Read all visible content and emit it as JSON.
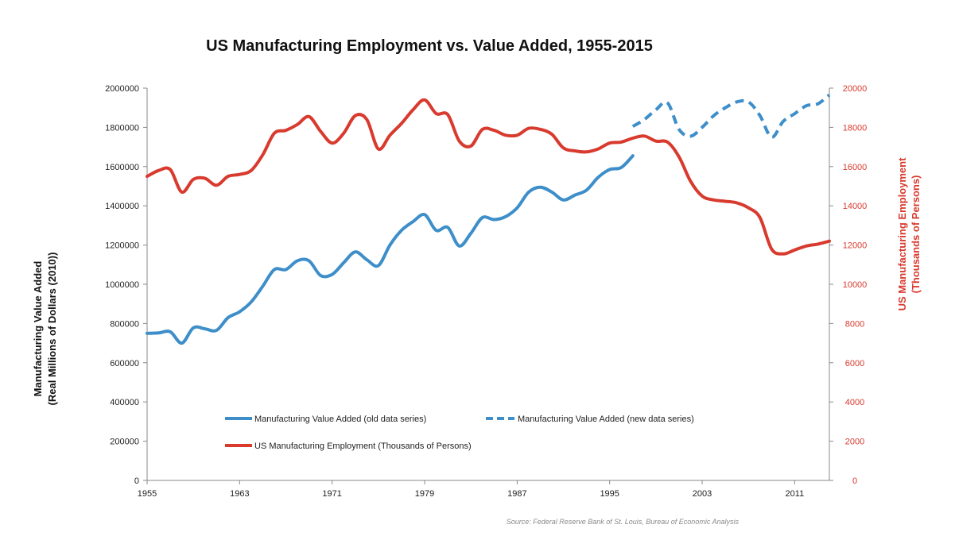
{
  "chart_data": {
    "type": "line",
    "title": "US Manufacturing Employment vs. Value Added, 1955-2015",
    "ylabel_left": [
      "Manufacturing Value Added",
      "(Real Millions of Dollars (2010))"
    ],
    "ylabel_right": [
      "US Manufacturing Employment",
      "(Thousands of Persons)"
    ],
    "source": "Source: Federal Reserve Bank of St. Louis, Bureau of Economic Analysis",
    "xlim": [
      1955,
      2014
    ],
    "ylim_left": [
      0,
      2000000
    ],
    "ylim_right": [
      0,
      20000
    ],
    "x_ticks": [
      "1955",
      "1963",
      "1971",
      "1979",
      "1987",
      "1995",
      "2003",
      "2011"
    ],
    "y_ticks_left": [
      "0",
      "200000",
      "400000",
      "600000",
      "800000",
      "1000000",
      "1200000",
      "1400000",
      "1600000",
      "1800000",
      "2000000"
    ],
    "y_ticks_right": [
      "0",
      "2000",
      "4000",
      "6000",
      "8000",
      "10000",
      "12000",
      "14000",
      "16000",
      "18000",
      "20000"
    ],
    "grid": false,
    "legend_position": "bottom-center",
    "colors": {
      "value_added": "#3d8ec9",
      "employment": "#d83a2e"
    },
    "series": [
      {
        "name": "Manufacturing Value Added (old data series)",
        "axis": "left",
        "style": "solid",
        "color": "#3d8ec9",
        "x": [
          1955,
          1956,
          1957,
          1958,
          1959,
          1960,
          1961,
          1962,
          1963,
          1964,
          1965,
          1966,
          1967,
          1968,
          1969,
          1970,
          1971,
          1972,
          1973,
          1974,
          1975,
          1976,
          1977,
          1978,
          1979,
          1980,
          1981,
          1982,
          1983,
          1984,
          1985,
          1986,
          1987,
          1988,
          1989,
          1990,
          1991,
          1992,
          1993,
          1994,
          1995,
          1996,
          1997
        ],
        "y": [
          750000,
          752000,
          758000,
          700000,
          778000,
          773000,
          765000,
          830000,
          860000,
          910000,
          990000,
          1075000,
          1075000,
          1120000,
          1120000,
          1045000,
          1050000,
          1110000,
          1165000,
          1125000,
          1095000,
          1200000,
          1275000,
          1320000,
          1355000,
          1275000,
          1290000,
          1195000,
          1260000,
          1340000,
          1330000,
          1345000,
          1390000,
          1470000,
          1495000,
          1470000,
          1430000,
          1455000,
          1480000,
          1545000,
          1585000,
          1595000,
          1655000
        ]
      },
      {
        "name": "Manufacturing Value Added (new data series)",
        "axis": "left",
        "style": "dashed",
        "color": "#3d8ec9",
        "x": [
          1997,
          1998,
          1999,
          2000,
          2001,
          2002,
          2003,
          2004,
          2005,
          2006,
          2007,
          2008,
          2009,
          2010,
          2011,
          2012,
          2013,
          2014
        ],
        "y": [
          1805000,
          1840000,
          1890000,
          1925000,
          1790000,
          1755000,
          1800000,
          1860000,
          1900000,
          1930000,
          1930000,
          1860000,
          1750000,
          1830000,
          1870000,
          1910000,
          1920000,
          1965000
        ]
      },
      {
        "name": "US Manufacturing Employment (Thousands of Persons)",
        "axis": "right",
        "style": "solid",
        "color": "#d83a2e",
        "x": [
          1955,
          1956,
          1957,
          1958,
          1959,
          1960,
          1961,
          1962,
          1963,
          1964,
          1965,
          1966,
          1967,
          1968,
          1969,
          1970,
          1971,
          1972,
          1973,
          1974,
          1975,
          1976,
          1977,
          1978,
          1979,
          1980,
          1981,
          1982,
          1983,
          1984,
          1985,
          1986,
          1987,
          1988,
          1989,
          1990,
          1991,
          1992,
          1993,
          1994,
          1995,
          1996,
          1997,
          1998,
          1999,
          2000,
          2001,
          2002,
          2003,
          2004,
          2005,
          2006,
          2007,
          2008,
          2009,
          2010,
          2011,
          2012,
          2013,
          2014
        ],
        "y": [
          15500,
          15800,
          15850,
          14700,
          15350,
          15400,
          15050,
          15500,
          15600,
          15800,
          16600,
          17700,
          17850,
          18150,
          18550,
          17800,
          17200,
          17700,
          18600,
          18400,
          16900,
          17600,
          18200,
          18900,
          19400,
          18700,
          18650,
          17300,
          17050,
          17900,
          17850,
          17600,
          17600,
          17950,
          17900,
          17650,
          16950,
          16800,
          16750,
          16900,
          17200,
          17250,
          17450,
          17560,
          17300,
          17250,
          16500,
          15250,
          14500,
          14300,
          14230,
          14150,
          13900,
          13400,
          11800,
          11550,
          11750,
          11950,
          12050,
          12200
        ]
      }
    ]
  }
}
